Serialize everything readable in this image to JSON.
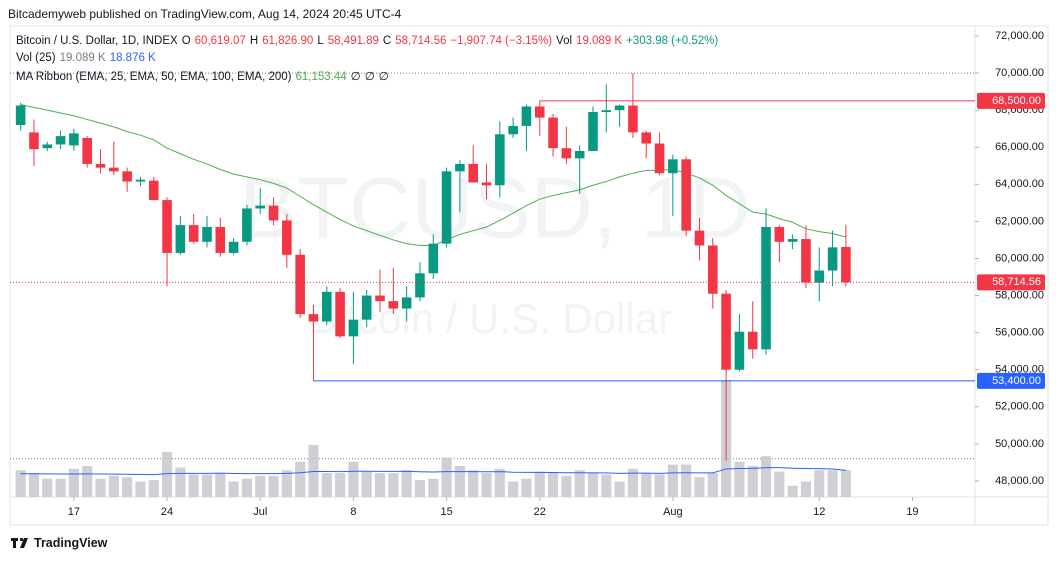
{
  "header": {
    "publisher": "Bitcademyweb published on TradingView.com, Aug 14, 2024 20:45 UTC-4"
  },
  "legend": {
    "symbol": "Bitcoin / U.S. Dollar, 1D, INDEX",
    "o": "O",
    "open": "60,619.07",
    "h": "H",
    "high": "61,826.90",
    "l": "L",
    "low": "58,491.89",
    "c": "C",
    "close": "58,714.56",
    "change": "−1,907.74 (−3.15%)",
    "vol": "Vol",
    "vol_value": "19.089 K",
    "vol_change": "+303.98 (+0.52%)",
    "vol_study": "Vol (25)",
    "vol_study_value": "19.089 K",
    "vol_study_ma": "18.876 K",
    "ma_study": "MA Ribbon (EMA, 25, EMA, 50, EMA, 100, EMA, 200)",
    "ma_value": "61,153.44",
    "ma_empty": [
      "∅",
      "∅",
      "∅"
    ]
  },
  "chart_data": {
    "type": "candlestick",
    "watermark": {
      "symbol": "BTCUSD, 1D",
      "name": "Bitcoin / U.S. Dollar"
    },
    "xlim": [
      -0.8,
      71.7
    ],
    "xticks": [
      {
        "value": 4,
        "label": "17"
      },
      {
        "value": 11,
        "label": "24"
      },
      {
        "value": 18,
        "label": "Jul"
      },
      {
        "value": 25,
        "label": "8"
      },
      {
        "value": 32,
        "label": "15"
      },
      {
        "value": 39,
        "label": "22"
      },
      {
        "value": 49,
        "label": "Aug"
      },
      {
        "value": 60,
        "label": "12"
      },
      {
        "value": 67,
        "label": "19"
      }
    ],
    "ylim": [
      47135,
      72540
    ],
    "yticks": [
      {
        "value": 48000,
        "label": "48,000.00"
      },
      {
        "value": 50000,
        "label": "50,000.00"
      },
      {
        "value": 52000,
        "label": "52,000.00"
      },
      {
        "value": 54000,
        "label": "54,000.00"
      },
      {
        "value": 56000,
        "label": "56,000.00"
      },
      {
        "value": 58000,
        "label": "58,000.00"
      },
      {
        "value": 60000,
        "label": "60,000.00"
      },
      {
        "value": 62000,
        "label": "62,000.00"
      },
      {
        "value": 64000,
        "label": "64,000.00"
      },
      {
        "value": 66000,
        "label": "66,000.00"
      },
      {
        "value": 68000,
        "label": "68,000.00"
      },
      {
        "value": 70000,
        "label": "70,000.00"
      },
      {
        "value": 72000,
        "label": "72,000.00"
      }
    ],
    "candles": {
      "up_color": "#089981",
      "down_color": "#f23645",
      "open": [
        67200,
        66800,
        65950,
        66150,
        66100,
        66500,
        65100,
        64900,
        64700,
        64150,
        64200,
        63150,
        60300,
        61800,
        60900,
        61700,
        60300,
        60900,
        62700,
        62850,
        62050,
        60200,
        57000,
        56600,
        58200,
        55800,
        56700,
        58000,
        57700,
        57300,
        57900,
        59200,
        60800,
        64700,
        65100,
        64100,
        63950,
        66700,
        67150,
        68200,
        67600,
        65950,
        65400,
        65800,
        67900,
        68000,
        68250,
        66800,
        66200,
        64600,
        65350,
        61500,
        60700,
        58100,
        54000,
        56050,
        55100,
        61700,
        60900,
        61050,
        58700,
        59350,
        60619.07
      ],
      "high": [
        68400,
        67500,
        66300,
        66900,
        67000,
        66600,
        65900,
        66300,
        64900,
        64400,
        64400,
        63300,
        62300,
        62400,
        62300,
        62200,
        61100,
        62900,
        63800,
        63300,
        62400,
        60500,
        57500,
        58500,
        58400,
        58200,
        58300,
        59400,
        59500,
        58500,
        59800,
        61300,
        64900,
        65300,
        66100,
        65100,
        67400,
        67600,
        68300,
        68500,
        67800,
        67100,
        66100,
        68200,
        69400,
        68300,
        70000,
        66900,
        66800,
        65600,
        65500,
        62200,
        61100,
        58300,
        57000,
        57700,
        62700,
        61800,
        61300,
        61800,
        60600,
        61500,
        61826.9
      ],
      "low": [
        66900,
        65000,
        65800,
        65900,
        65800,
        64900,
        64600,
        64500,
        63600,
        63900,
        63200,
        58500,
        60200,
        60800,
        60600,
        60100,
        60200,
        60700,
        62400,
        61800,
        59500,
        56800,
        53400,
        56400,
        55700,
        54300,
        56300,
        57100,
        57000,
        56600,
        57700,
        58900,
        60600,
        62500,
        64300,
        63200,
        63300,
        66500,
        65800,
        66600,
        65500,
        65100,
        63500,
        65800,
        66800,
        67100,
        66500,
        65400,
        64500,
        62300,
        61200,
        59900,
        57300,
        49100,
        53900,
        54600,
        54800,
        59800,
        60500,
        58400,
        57700,
        58500,
        58491.89
      ],
      "close": [
        68250,
        65900,
        66150,
        66600,
        66750,
        65100,
        64900,
        64700,
        64150,
        64250,
        63150,
        60300,
        61800,
        60900,
        61700,
        60300,
        60900,
        62700,
        62850,
        62050,
        60200,
        57000,
        56600,
        58200,
        55800,
        56700,
        58000,
        57700,
        57300,
        57900,
        59200,
        60800,
        64700,
        65100,
        64100,
        63950,
        66700,
        67150,
        68200,
        67600,
        65950,
        65400,
        65800,
        67900,
        68000,
        68250,
        66800,
        66200,
        64600,
        65350,
        61500,
        60700,
        58100,
        54000,
        56050,
        55100,
        61700,
        60900,
        61050,
        58700,
        59350,
        60600,
        58714.56
      ]
    },
    "ema": {
      "color": "#4caf50",
      "values": [
        68300,
        68150,
        68000,
        67850,
        67700,
        67500,
        67300,
        67100,
        66850,
        66650,
        66400,
        65950,
        65650,
        65350,
        65100,
        64800,
        64550,
        64400,
        64250,
        64050,
        63800,
        63350,
        62900,
        62500,
        62100,
        61750,
        61500,
        61250,
        61000,
        60800,
        60700,
        60700,
        61000,
        61300,
        61500,
        61700,
        62050,
        62450,
        62850,
        63200,
        63400,
        63550,
        63700,
        63950,
        64150,
        64400,
        64600,
        64750,
        64750,
        64800,
        64600,
        64350,
        63950,
        63400,
        62950,
        62500,
        62400,
        62150,
        61950,
        61600,
        61450,
        61350,
        61153.44
      ]
    },
    "volume": {
      "color": "#c7c8cc",
      "values": [
        19,
        17,
        13,
        13,
        20,
        22,
        13,
        15,
        14,
        11,
        12,
        32,
        21,
        16,
        16,
        17,
        11,
        13,
        15,
        15,
        19,
        25,
        37,
        17,
        17,
        25,
        18,
        17,
        17,
        19,
        12,
        13,
        28,
        22,
        19,
        17,
        20,
        11,
        13,
        18,
        17,
        15,
        19,
        17,
        16,
        11,
        20,
        17,
        16,
        23,
        23,
        14,
        17,
        83,
        25,
        22,
        29,
        18,
        8,
        11,
        19,
        19,
        19.089
      ]
    },
    "volume_ma": {
      "color": "#2962ff",
      "values": [
        16.5,
        16.5,
        16.4,
        16.3,
        16.3,
        16.4,
        16.3,
        16.2,
        16.1,
        16.0,
        15.9,
        16.6,
        16.8,
        16.8,
        16.8,
        16.9,
        16.7,
        16.6,
        16.6,
        16.6,
        16.8,
        17.2,
        18.1,
        18.1,
        18.0,
        18.3,
        18.3,
        18.2,
        18.2,
        18.2,
        17.9,
        17.7,
        18.0,
        18.0,
        18.0,
        17.9,
        18.0,
        17.6,
        17.5,
        17.5,
        17.4,
        17.2,
        17.2,
        17.1,
        17.1,
        16.8,
        16.9,
        16.9,
        16.8,
        17.1,
        17.2,
        17.1,
        17.1,
        19.9,
        20.2,
        20.3,
        20.8,
        20.8,
        20.4,
        20.2,
        20.1,
        19.9,
        18.876
      ]
    },
    "price_lines": [
      {
        "value": 68500,
        "label": "68,500.00",
        "color": "#f23645",
        "x_start": 39
      },
      {
        "value": 53400,
        "label": "53,400.00",
        "color": "#2962ff",
        "x_start": 22
      }
    ],
    "dotted_lines": [
      70000,
      49200
    ],
    "last_price": {
      "value": 58714.56,
      "label": "58,714.56",
      "color": "#f23645"
    }
  },
  "footer": {
    "brand": "TradingView"
  }
}
